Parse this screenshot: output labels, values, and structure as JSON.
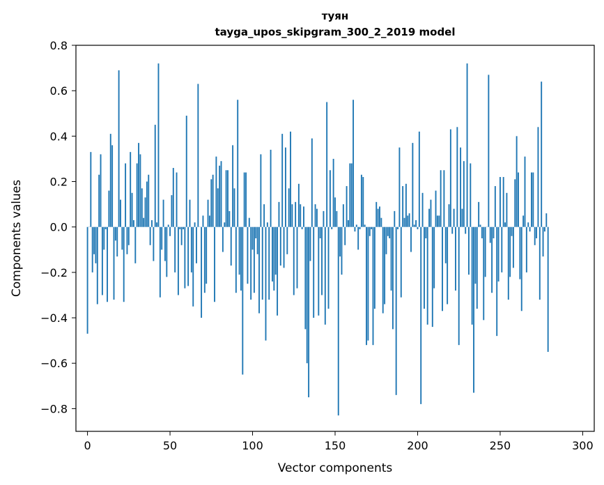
{
  "chart_data": {
    "type": "bar",
    "title": "туян",
    "subtitle": "tayga_upos_skipgram_300_2_2019 model",
    "xlabel": "Vector components",
    "ylabel": "Components values",
    "xlim": [
      -7,
      307
    ],
    "ylim": [
      -0.9,
      0.8
    ],
    "xticks": [
      0,
      50,
      100,
      150,
      200,
      250,
      300
    ],
    "xtick_labels": [
      "0",
      "50",
      "100",
      "150",
      "200",
      "250",
      "300"
    ],
    "yticks": [
      -0.8,
      -0.6,
      -0.4,
      -0.2,
      0.0,
      0.2,
      0.4,
      0.6,
      0.8
    ],
    "ytick_labels": [
      "−0.8",
      "−0.6",
      "−0.4",
      "−0.2",
      "0.0",
      "0.2",
      "0.4",
      "0.6",
      "0.8"
    ],
    "bar_color": "#1f77b4",
    "grid": false,
    "values": [
      -0.47,
      0.0,
      0.33,
      -0.2,
      -0.12,
      -0.16,
      -0.34,
      0.23,
      0.32,
      -0.3,
      -0.1,
      -0.01,
      -0.33,
      0.16,
      0.41,
      0.36,
      -0.32,
      -0.06,
      -0.13,
      0.69,
      0.12,
      -0.1,
      -0.33,
      0.28,
      -0.12,
      -0.08,
      0.33,
      0.15,
      0.03,
      -0.16,
      0.28,
      0.37,
      0.32,
      0.17,
      0.04,
      0.13,
      0.2,
      0.23,
      -0.08,
      0.03,
      -0.15,
      0.45,
      0.02,
      0.72,
      -0.31,
      -0.1,
      0.12,
      -0.15,
      -0.22,
      0.01,
      -0.04,
      0.14,
      0.26,
      -0.2,
      0.24,
      -0.3,
      -0.01,
      -0.08,
      -0.01,
      -0.27,
      0.49,
      -0.26,
      0.12,
      -0.2,
      -0.35,
      0.02,
      -0.16,
      0.63,
      0.0,
      -0.4,
      0.05,
      -0.29,
      -0.25,
      0.12,
      0.05,
      0.21,
      0.23,
      -0.33,
      0.31,
      0.17,
      0.27,
      0.29,
      -0.11,
      0.02,
      0.25,
      0.25,
      0.07,
      -0.17,
      0.36,
      0.17,
      -0.29,
      0.56,
      -0.21,
      -0.28,
      -0.65,
      0.24,
      0.24,
      -0.25,
      0.04,
      -0.32,
      -0.1,
      -0.29,
      -0.05,
      -0.12,
      -0.38,
      0.32,
      -0.32,
      0.1,
      -0.5,
      0.02,
      -0.32,
      0.34,
      -0.24,
      -0.28,
      -0.21,
      -0.39,
      0.11,
      -0.17,
      0.41,
      -0.18,
      0.35,
      -0.12,
      0.17,
      0.42,
      0.1,
      -0.3,
      0.11,
      -0.27,
      0.19,
      0.1,
      -0.01,
      0.09,
      -0.45,
      -0.6,
      -0.75,
      -0.15,
      0.39,
      -0.4,
      0.1,
      0.08,
      -0.39,
      -0.05,
      -0.3,
      0.07,
      -0.43,
      0.55,
      -0.36,
      0.25,
      -0.01,
      0.3,
      0.13,
      0.07,
      -0.83,
      -0.13,
      -0.21,
      0.1,
      -0.08,
      0.18,
      0.03,
      0.28,
      0.28,
      0.56,
      -0.02,
      0.01,
      -0.1,
      -0.01,
      0.23,
      0.22,
      0.01,
      -0.52,
      -0.5,
      -0.04,
      -0.01,
      -0.52,
      -0.36,
      0.11,
      0.08,
      0.09,
      0.04,
      -0.38,
      -0.34,
      -0.12,
      -0.04,
      -0.05,
      -0.28,
      -0.45,
      0.07,
      -0.74,
      -0.01,
      0.35,
      -0.31,
      0.18,
      0.04,
      0.19,
      0.05,
      0.06,
      -0.11,
      0.37,
      0.01,
      0.03,
      -0.01,
      0.42,
      -0.78,
      0.15,
      -0.36,
      -0.05,
      -0.43,
      0.08,
      0.12,
      -0.44,
      -0.27,
      0.16,
      0.05,
      0.05,
      0.25,
      -0.37,
      0.25,
      -0.16,
      -0.34,
      0.1,
      0.43,
      -0.03,
      0.08,
      -0.28,
      0.44,
      -0.52,
      0.35,
      0.08,
      0.29,
      -0.03,
      0.72,
      -0.21,
      0.28,
      -0.43,
      -0.73,
      -0.25,
      -0.36,
      0.11,
      0.01,
      -0.05,
      -0.41,
      -0.22,
      0.0,
      0.67,
      -0.07,
      -0.29,
      -0.05,
      0.18,
      -0.48,
      -0.24,
      0.22,
      -0.2,
      0.22,
      0.02,
      0.15,
      -0.32,
      -0.22,
      -0.04,
      -0.18,
      0.21,
      0.4,
      0.24,
      -0.23,
      -0.37,
      0.05,
      0.31,
      -0.2,
      0.02,
      -0.02,
      0.24,
      0.24,
      -0.08,
      -0.05,
      0.44,
      -0.32,
      0.64,
      -0.13,
      -0.02,
      0.06,
      -0.55
    ]
  }
}
